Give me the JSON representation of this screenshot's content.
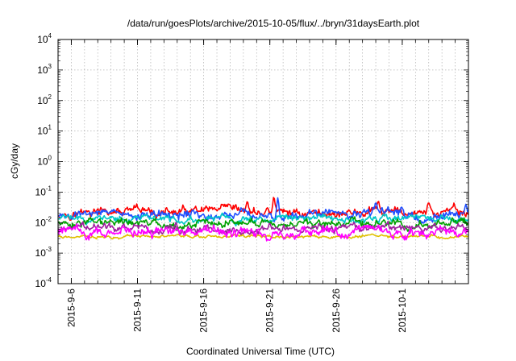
{
  "chart_data": {
    "type": "line",
    "title": "/data/run/goesPlots/archive/2015-10-05/flux/../bryn/31daysEarth.plot",
    "xlabel": "Coordinated Universal Time (UTC)",
    "ylabel": "cGy/day",
    "yscale": "log",
    "ylim": [
      0.0001,
      10000
    ],
    "xlim_days": [
      0,
      31
    ],
    "grid": true,
    "y_ticks": [
      {
        "base": "10",
        "exp": "4",
        "value": 10000
      },
      {
        "base": "10",
        "exp": "3",
        "value": 1000
      },
      {
        "base": "10",
        "exp": "2",
        "value": 100
      },
      {
        "base": "10",
        "exp": "1",
        "value": 10
      },
      {
        "base": "10",
        "exp": "0",
        "value": 1
      },
      {
        "base": "10",
        "exp": "-1",
        "value": 0.1
      },
      {
        "base": "10",
        "exp": "-2",
        "value": 0.01
      },
      {
        "base": "10",
        "exp": "-3",
        "value": 0.001
      },
      {
        "base": "10",
        "exp": "-4",
        "value": 0.0001
      }
    ],
    "x_ticks": [
      {
        "label": "2015-9-6",
        "day": 1
      },
      {
        "label": "2015-9-11",
        "day": 6
      },
      {
        "label": "2015-9-16",
        "day": 11
      },
      {
        "label": "2015-9-21",
        "day": 16
      },
      {
        "label": "2015-9-26",
        "day": 21
      },
      {
        "label": "2015-10-1",
        "day": 26
      }
    ],
    "x_minor_step_days": 1,
    "series": [
      {
        "name": "red",
        "color": "#ff0000",
        "typical": 0.021,
        "spread": 0.16,
        "spikes": [
          {
            "day": 14.3,
            "value": 0.05
          },
          {
            "day": 16.3,
            "value": 0.07
          },
          {
            "day": 24.2,
            "value": 0.05
          },
          {
            "day": 28.0,
            "value": 0.045
          }
        ]
      },
      {
        "name": "blue",
        "color": "#1f4fff",
        "typical": 0.018,
        "spread": 0.17,
        "spikes": [
          {
            "day": 16.6,
            "value": 0.065
          },
          {
            "day": 24.0,
            "value": 0.045
          },
          {
            "day": 30.8,
            "value": 0.04
          }
        ]
      },
      {
        "name": "cyan",
        "color": "#00c8c8",
        "typical": 0.013,
        "spread": 0.12,
        "spikes": []
      },
      {
        "name": "green",
        "color": "#00a000",
        "typical": 0.009,
        "spread": 0.15,
        "spikes": []
      },
      {
        "name": "purple",
        "color": "#a020a0",
        "typical": 0.0065,
        "spread": 0.14,
        "spikes": []
      },
      {
        "name": "yellow",
        "color": "#e0c000",
        "typical": 0.0035,
        "spread": 0.05,
        "spikes": []
      },
      {
        "name": "magenta",
        "color": "#ff00ff",
        "typical": 0.0048,
        "spread": 0.18,
        "spikes": []
      }
    ]
  }
}
